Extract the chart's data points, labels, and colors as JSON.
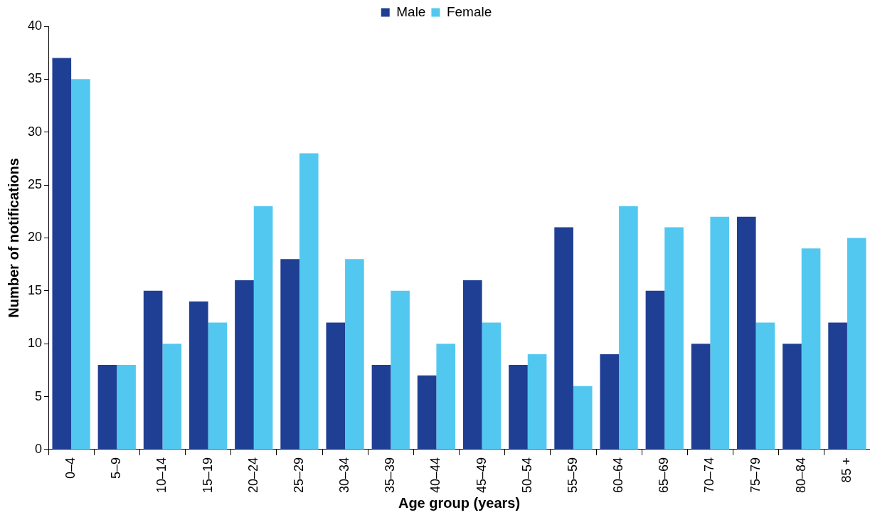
{
  "chart_data": {
    "type": "bar",
    "xlabel": "Age group (years)",
    "ylabel": "Number of notifications",
    "categories": [
      "0–4",
      "5–9",
      "10–14",
      "15–19",
      "20–24",
      "25–29",
      "30–34",
      "35–39",
      "40–44",
      "45–49",
      "50–54",
      "55–59",
      "60–64",
      "65–69",
      "70–74",
      "75–79",
      "80–84",
      "85 +"
    ],
    "series": [
      {
        "name": "Male",
        "color": "#1f3f94",
        "values": [
          37,
          8,
          15,
          14,
          16,
          18,
          12,
          8,
          7,
          16,
          8,
          21,
          9,
          15,
          10,
          22,
          10,
          12
        ]
      },
      {
        "name": "Female",
        "color": "#52c8f0",
        "values": [
          35,
          8,
          10,
          12,
          23,
          28,
          18,
          15,
          10,
          12,
          9,
          6,
          23,
          21,
          22,
          12,
          19,
          20
        ]
      }
    ],
    "ylim": [
      0,
      40
    ],
    "yticks": [
      0,
      5,
      10,
      15,
      20,
      25,
      30,
      35,
      40
    ],
    "grid": false,
    "legend": "top"
  }
}
